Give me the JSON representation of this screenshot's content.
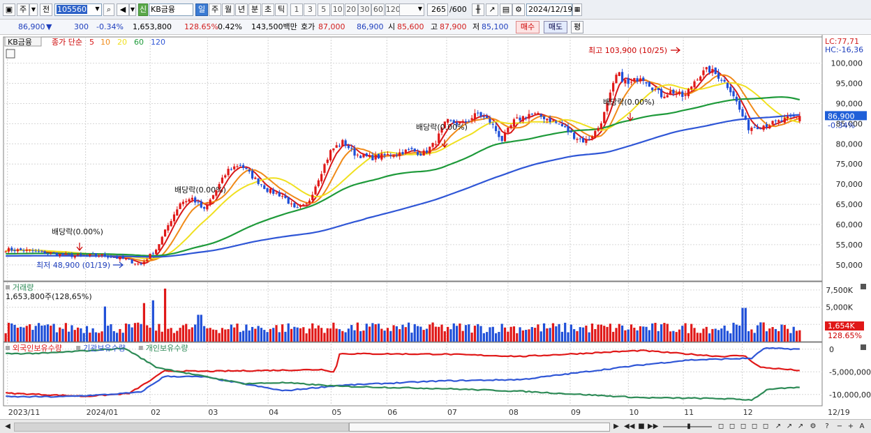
{
  "toolbar": {
    "period_type": "주",
    "prev_button": "전",
    "stock_code": "105560",
    "signal_badge": "신",
    "stock_name": "KB금융",
    "period_buttons": [
      "일",
      "주",
      "월",
      "년",
      "분",
      "초",
      "틱"
    ],
    "minute_buttons": [
      "1",
      "3",
      "5",
      "10",
      "20",
      "30",
      "60",
      "120"
    ],
    "count": "265",
    "count_max": "/600",
    "date": "2024/12/19"
  },
  "quote": {
    "price": "86,900",
    "arrow": "▼",
    "change": "300",
    "change_pct": "-0.34%",
    "volume": "1,653,800",
    "volume_pct": "128.65%",
    "turnover_pct": "0.42%",
    "amount": "143,500백만",
    "ask_label": "호가",
    "ask_price": "87,000",
    "bid_price": "86,900",
    "open_label": "시",
    "open": "85,600",
    "high_label": "고",
    "high": "87,900",
    "low_label": "저",
    "low": "85,100",
    "buy_button": "매수",
    "sell_button": "매도",
    "eval_button": "평"
  },
  "legend": {
    "stock": "KB금융",
    "ma_label": "종가 단순",
    "ma_periods": [
      "5",
      "10",
      "20",
      "60",
      "120"
    ],
    "ma_colors": [
      "#d81818",
      "#f08a18",
      "#f0e020",
      "#1e9a3a",
      "#2f56d6"
    ]
  },
  "price_labels": {
    "lc": "LC:77,71",
    "hc": "HC:-16,36",
    "high_annotation": "최고 103,900 (10/25)",
    "low_annotation": "최저 48,900 (01/19)",
    "dividend_annotations": [
      "배당락(0.00%)",
      "배당락(0.00%)",
      "배당락(0.00%)",
      "배당락(0.00%)"
    ],
    "current_price": "86,900",
    "current_change": "-0.34%"
  },
  "volume_panel": {
    "title": "거래량",
    "value_label": "1,653,800주(128,65%)",
    "current_value": "1,654K",
    "current_pct": "128.65%"
  },
  "holdings_panel": {
    "series_names": [
      "외국인보유수량",
      "기관보유수량",
      "개인보유수량"
    ],
    "colors": [
      "#e01818",
      "#2f56d6",
      "#2e8b57"
    ]
  },
  "chart_data": [
    {
      "type": "candlestick",
      "title": "",
      "y_ticks": [
        50000,
        55000,
        60000,
        65000,
        70000,
        75000,
        80000,
        85000,
        90000,
        95000,
        100000
      ],
      "y_tick_labels": [
        "50,000",
        "55,000",
        "60,000",
        "65,000",
        "70,000",
        "75,000",
        "80,000",
        "85,000",
        "90,000",
        "95,000",
        "100,000"
      ],
      "ylim": [
        46000,
        106500
      ],
      "x_tick_labels": [
        "2023/11",
        "2024/01",
        "02",
        "03",
        "04",
        "05",
        "06",
        "07",
        "08",
        "09",
        "10",
        "11",
        "12",
        "12/19"
      ],
      "close_profile": [
        [
          0,
          53800
        ],
        [
          0.03,
          53500
        ],
        [
          0.06,
          52700
        ],
        [
          0.09,
          52200
        ],
        [
          0.12,
          52400
        ],
        [
          0.15,
          51400
        ],
        [
          0.17,
          50000
        ],
        [
          0.19,
          54000
        ],
        [
          0.205,
          60000
        ],
        [
          0.22,
          65500
        ],
        [
          0.235,
          66500
        ],
        [
          0.25,
          63500
        ],
        [
          0.265,
          68500
        ],
        [
          0.28,
          73500
        ],
        [
          0.295,
          75000
        ],
        [
          0.31,
          72000
        ],
        [
          0.33,
          68500
        ],
        [
          0.35,
          67000
        ],
        [
          0.365,
          63500
        ],
        [
          0.38,
          65000
        ],
        [
          0.395,
          72000
        ],
        [
          0.41,
          78500
        ],
        [
          0.425,
          80500
        ],
        [
          0.44,
          77500
        ],
        [
          0.46,
          76500
        ],
        [
          0.49,
          77500
        ],
        [
          0.51,
          78500
        ],
        [
          0.525,
          77500
        ],
        [
          0.54,
          80000
        ],
        [
          0.555,
          85500
        ],
        [
          0.575,
          85000
        ],
        [
          0.595,
          87500
        ],
        [
          0.61,
          85500
        ],
        [
          0.625,
          81000
        ],
        [
          0.64,
          85500
        ],
        [
          0.66,
          87500
        ],
        [
          0.68,
          86500
        ],
        [
          0.7,
          84500
        ],
        [
          0.715,
          82000
        ],
        [
          0.73,
          80500
        ],
        [
          0.745,
          83500
        ],
        [
          0.755,
          88000
        ],
        [
          0.77,
          97500
        ],
        [
          0.785,
          94500
        ],
        [
          0.8,
          97000
        ],
        [
          0.81,
          95000
        ],
        [
          0.825,
          92000
        ],
        [
          0.84,
          93000
        ],
        [
          0.855,
          91500
        ],
        [
          0.87,
          96500
        ],
        [
          0.885,
          98500
        ],
        [
          0.9,
          96500
        ],
        [
          0.915,
          93000
        ],
        [
          0.925,
          88000
        ],
        [
          0.935,
          84000
        ],
        [
          0.95,
          84500
        ],
        [
          0.965,
          85000
        ],
        [
          1.0,
          86900
        ]
      ],
      "moving_averages": [
        "5",
        "10",
        "20",
        "60",
        "120"
      ]
    },
    {
      "type": "bar",
      "title": "거래량",
      "y_ticks": [
        2500000,
        5000000,
        7500000
      ],
      "y_tick_labels": [
        "2,500K",
        "5,000K",
        "7,500K"
      ],
      "ylim": [
        0,
        8500000
      ],
      "current": 1653800,
      "spikes": [
        {
          "x": 0.125,
          "value": 5100000
        },
        {
          "x": 0.175,
          "value": 5600000
        },
        {
          "x": 0.185,
          "value": 6000000
        },
        {
          "x": 0.2,
          "value": 7700000
        },
        {
          "x": 0.245,
          "value": 3900000
        },
        {
          "x": 0.93,
          "value": 4900000
        }
      ]
    },
    {
      "type": "line",
      "title": "",
      "series": [
        {
          "name": "외국인보유수량",
          "profile": [
            [
              0,
              -9700000
            ],
            [
              0.1,
              -10400000
            ],
            [
              0.155,
              -9800000
            ],
            [
              0.185,
              -6600000
            ],
            [
              0.2,
              -4800000
            ],
            [
              0.25,
              -4900000
            ],
            [
              0.4,
              -4500000
            ],
            [
              0.415,
              -5100000
            ],
            [
              0.42,
              -1000000
            ],
            [
              0.55,
              -1100000
            ],
            [
              0.65,
              -1600000
            ],
            [
              0.8,
              -300000
            ],
            [
              0.9,
              -1600000
            ],
            [
              0.93,
              -1400000
            ],
            [
              0.95,
              -4000000
            ],
            [
              1.0,
              -4700000
            ]
          ]
        },
        {
          "name": "기관보유수량",
          "profile": [
            [
              0,
              -10500000
            ],
            [
              0.07,
              -10500000
            ],
            [
              0.13,
              -10000000
            ],
            [
              0.17,
              -9500000
            ],
            [
              0.2,
              -6000000
            ],
            [
              0.25,
              -6100000
            ],
            [
              0.35,
              -9200000
            ],
            [
              0.42,
              -8000000
            ],
            [
              0.55,
              -7000000
            ],
            [
              0.65,
              -6700000
            ],
            [
              0.8,
              -3500000
            ],
            [
              0.86,
              -2400000
            ],
            [
              0.94,
              -2000000
            ],
            [
              0.955,
              200000
            ],
            [
              1.0,
              0
            ]
          ]
        },
        {
          "name": "개인보유수량",
          "profile": [
            [
              0,
              -1000000
            ],
            [
              0.05,
              -900000
            ],
            [
              0.15,
              200000
            ],
            [
              0.19,
              -4000000
            ],
            [
              0.24,
              -5700000
            ],
            [
              0.3,
              -7600000
            ],
            [
              0.35,
              -7400000
            ],
            [
              0.42,
              -8200000
            ],
            [
              0.55,
              -8700000
            ],
            [
              0.65,
              -9300000
            ],
            [
              0.8,
              -10700000
            ],
            [
              0.9,
              -10900000
            ],
            [
              0.94,
              -11200000
            ],
            [
              0.96,
              -8800000
            ],
            [
              1.0,
              -8500000
            ]
          ]
        }
      ],
      "y_ticks": [
        0,
        -5000000,
        -10000000
      ],
      "y_tick_labels": [
        "0",
        "-5,000,000",
        "-10,000,000"
      ],
      "ylim": [
        -12500000,
        1500000
      ]
    }
  ]
}
